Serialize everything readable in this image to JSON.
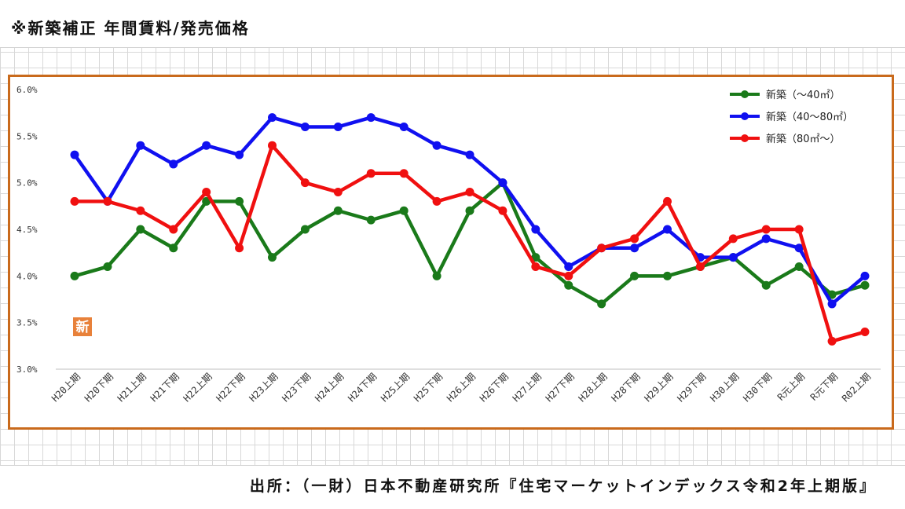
{
  "heading": "※新築補正 年間賃料/発売価格",
  "source": "出所：（一財）日本不動産研究所『住宅マーケットインデックス令和2年上期版』",
  "chart_data": {
    "type": "line",
    "title": "",
    "xlabel": "",
    "ylabel": "",
    "ylim": [
      3.0,
      6.0
    ],
    "yticks": [
      "3.0%",
      "3.5%",
      "4.0%",
      "4.5%",
      "5.0%",
      "5.5%",
      "6.0%"
    ],
    "legend_position": "top-right",
    "grid": false,
    "categories": [
      "H20上期",
      "H20下期",
      "H21上期",
      "H21下期",
      "H22上期",
      "H22下期",
      "H23上期",
      "H23下期",
      "H24上期",
      "H24下期",
      "H25上期",
      "H25下期",
      "H26上期",
      "H26下期",
      "H27上期",
      "H27下期",
      "H28上期",
      "H28下期",
      "H29上期",
      "H29下期",
      "H30上期",
      "H30下期",
      "R元上期",
      "R元下期",
      "R02上期"
    ],
    "series": [
      {
        "name": "新築（～40㎡）",
        "color": "#1a7a1a",
        "values": [
          4.0,
          4.1,
          4.5,
          4.3,
          4.8,
          4.8,
          4.2,
          4.5,
          4.7,
          4.6,
          4.7,
          4.0,
          4.7,
          5.0,
          4.2,
          3.9,
          3.7,
          4.0,
          4.0,
          4.1,
          4.2,
          3.9,
          4.1,
          3.8,
          3.9
        ]
      },
      {
        "name": "新築（40～80㎡）",
        "color": "#1010f0",
        "values": [
          5.3,
          4.8,
          5.4,
          5.2,
          5.4,
          5.3,
          5.7,
          5.6,
          5.6,
          5.7,
          5.6,
          5.4,
          5.3,
          5.0,
          4.5,
          4.1,
          4.3,
          4.3,
          4.5,
          4.2,
          4.2,
          4.4,
          4.3,
          3.7,
          4.0
        ]
      },
      {
        "name": "新築（80㎡～）",
        "color": "#f01010",
        "values": [
          4.8,
          4.8,
          4.7,
          4.5,
          4.9,
          4.3,
          5.4,
          5.0,
          4.9,
          5.1,
          5.1,
          4.8,
          4.9,
          4.7,
          4.1,
          4.0,
          4.3,
          4.4,
          4.8,
          4.1,
          4.4,
          4.5,
          4.5,
          3.3,
          3.4
        ]
      }
    ],
    "badge": "新"
  }
}
